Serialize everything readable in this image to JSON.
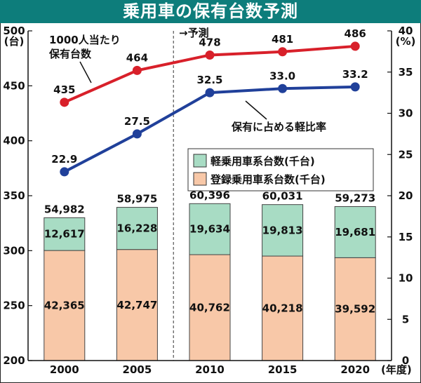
{
  "title": "乗用車の保有台数予測",
  "left_axis": {
    "label": "(台)",
    "ticks": [
      "500",
      "450",
      "400",
      "350",
      "300",
      "250",
      "200"
    ],
    "range": [
      200,
      500
    ]
  },
  "right_axis": {
    "label": "(%)",
    "ticks": [
      "40",
      "35",
      "30",
      "25",
      "20",
      "15",
      "10",
      "5",
      "0"
    ],
    "range": [
      0,
      40
    ]
  },
  "forecast_label": "→予測",
  "x_unit": "(年度)",
  "annotations": {
    "per_1000": "1000人当たり保有台数",
    "share": "保有に占める軽比率"
  },
  "legend": [
    {
      "label": "軽乗用車系台数(千台)",
      "color": "#a8dcc4"
    },
    {
      "label": "登録乗用車系台数(千台)",
      "color": "#f8c8a8"
    }
  ],
  "colors": {
    "header": "#0d7d7b",
    "red_line": "#d8202a",
    "blue_line": "#20409a",
    "light": "#a8dcc4",
    "registered": "#f8c8a8"
  },
  "chart_data": {
    "type": "bar",
    "categories": [
      "2000",
      "2005",
      "2010",
      "2015",
      "2020"
    ],
    "series": [
      {
        "name": "登録乗用車系台数(千台)",
        "values": [
          42365,
          42747,
          40762,
          40218,
          39592
        ],
        "labels": [
          "42,365",
          "42,747",
          "40,762",
          "40,218",
          "39,592"
        ]
      },
      {
        "name": "軽乗用車系台数(千台)",
        "values": [
          12617,
          16228,
          19634,
          19813,
          19681
        ],
        "labels": [
          "12,617",
          "16,228",
          "19,634",
          "19,813",
          "19,681"
        ]
      }
    ],
    "totals": [
      54982,
      58975,
      60396,
      60031,
      59273
    ],
    "total_labels": [
      "54,982",
      "58,975",
      "60,396",
      "60,031",
      "59,273"
    ],
    "lines": [
      {
        "name": "1000人当たり保有台数",
        "axis": "left",
        "values": [
          435,
          464,
          478,
          481,
          486
        ],
        "labels": [
          "435",
          "464",
          "478",
          "481",
          "486"
        ]
      },
      {
        "name": "保有に占める軽比率",
        "axis": "right",
        "values": [
          22.9,
          27.5,
          32.5,
          33.0,
          33.2
        ],
        "labels": [
          "22.9",
          "27.5",
          "32.5",
          "33.0",
          "33.2"
        ]
      }
    ],
    "title": "乗用車の保有台数予測",
    "ylabel": "(台)",
    "y2label": "(%)",
    "xlabel": "(年度)",
    "ylim": [
      200,
      500
    ],
    "y2lim": [
      0,
      40
    ],
    "grid": false,
    "legend_position": "center-right"
  }
}
